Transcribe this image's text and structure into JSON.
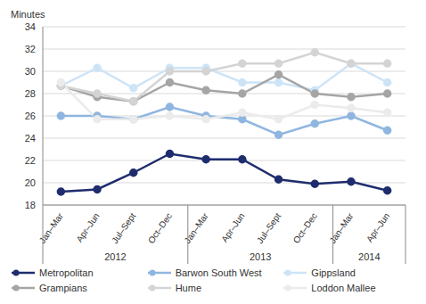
{
  "chart_data": {
    "type": "line",
    "y_label": "Minutes",
    "categories": [
      "Jan–Mar",
      "Apr–Jun",
      "Jul–Sept",
      "Oct–Dec",
      "Jan–Mar",
      "Apr–Jun",
      "Jul–Sept",
      "Oct–Dec",
      "Jan–Mar",
      "Apr–Jun"
    ],
    "groups": [
      {
        "name": "2012",
        "size": 4
      },
      {
        "name": "2013",
        "size": 4
      },
      {
        "name": "2014",
        "size": 2
      }
    ],
    "ylim": [
      18,
      34
    ],
    "yticks": [
      18,
      20,
      22,
      24,
      26,
      28,
      30,
      32,
      34
    ],
    "grid": true,
    "legend": "bottom",
    "marker": "circle",
    "series": [
      {
        "name": "Metropolitan",
        "color": "#1f2d6e",
        "values": [
          19.2,
          19.4,
          20.9,
          22.6,
          22.1,
          22.1,
          20.3,
          19.9,
          20.1,
          19.3
        ]
      },
      {
        "name": "Barwon South West",
        "color": "#8fb6e0",
        "values": [
          26.0,
          26.0,
          25.7,
          26.8,
          26.0,
          25.7,
          24.3,
          25.3,
          26.0,
          24.7
        ]
      },
      {
        "name": "Gippsland",
        "color": "#cde4f7",
        "values": [
          28.7,
          30.3,
          28.5,
          30.3,
          30.3,
          29.0,
          29.0,
          28.3,
          30.7,
          29.0
        ]
      },
      {
        "name": "Grampians",
        "color": "#a5a5a5",
        "values": [
          28.7,
          27.7,
          27.3,
          29.0,
          28.3,
          28.0,
          29.7,
          28.0,
          27.7,
          28.0
        ]
      },
      {
        "name": "Hume",
        "color": "#d4d4d4",
        "values": [
          28.7,
          28.0,
          27.3,
          30.0,
          30.0,
          30.7,
          30.7,
          31.7,
          30.7,
          30.7
        ]
      },
      {
        "name": "Loddon Mallee",
        "color": "#ebebeb",
        "values": [
          29.0,
          25.7,
          25.7,
          26.0,
          25.7,
          26.3,
          25.7,
          27.0,
          26.7,
          26.3
        ]
      }
    ]
  }
}
